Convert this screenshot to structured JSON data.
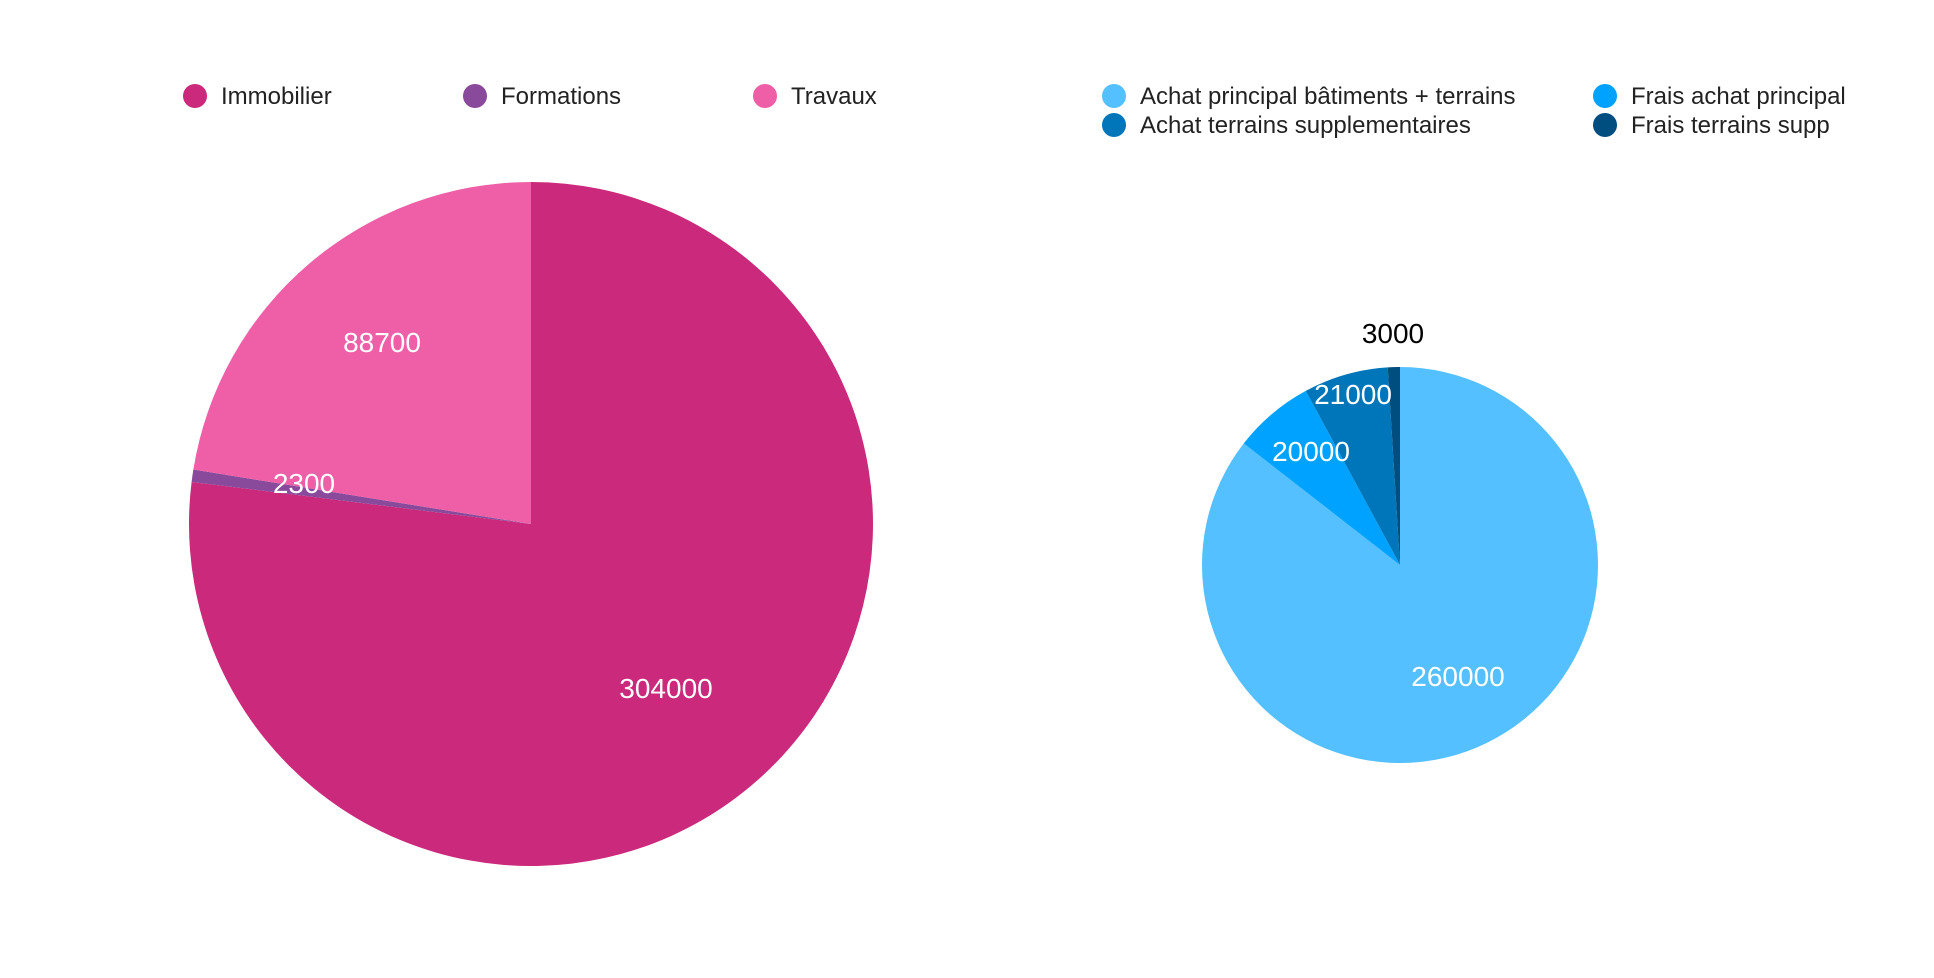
{
  "colors": {
    "immobilier": "#CB297B",
    "formations": "#8A4A9C",
    "travaux": "#EF5FA7",
    "achat_principal": "#55C0FF",
    "frais_achat_principal": "#00A2FF",
    "achat_terrains_supp": "#0076BA",
    "frais_terrains_supp": "#004D80"
  },
  "chart_data": [
    {
      "type": "pie",
      "title": "",
      "legend_position": "top",
      "series": [
        {
          "name": "Immobilier",
          "value": 304000,
          "color": "#CB297B",
          "label": "304000"
        },
        {
          "name": "Formations",
          "value": 2300,
          "color": "#8A4A9C",
          "label": "2300"
        },
        {
          "name": "Travaux",
          "value": 88700,
          "color": "#EF5FA7",
          "label": "88700"
        }
      ]
    },
    {
      "type": "pie",
      "title": "",
      "legend_position": "top",
      "series": [
        {
          "name": "Achat principal bâtiments + terrains",
          "value": 260000,
          "color": "#55C0FF",
          "label": "260000"
        },
        {
          "name": "Frais achat principal",
          "value": 20000,
          "color": "#00A2FF",
          "label": "20000"
        },
        {
          "name": "Achat terrains supplementaires",
          "value": 21000,
          "color": "#0076BA",
          "label": "21000"
        },
        {
          "name": "Frais terrains supp",
          "value": 3000,
          "color": "#004D80",
          "label": "3000"
        }
      ]
    }
  ]
}
